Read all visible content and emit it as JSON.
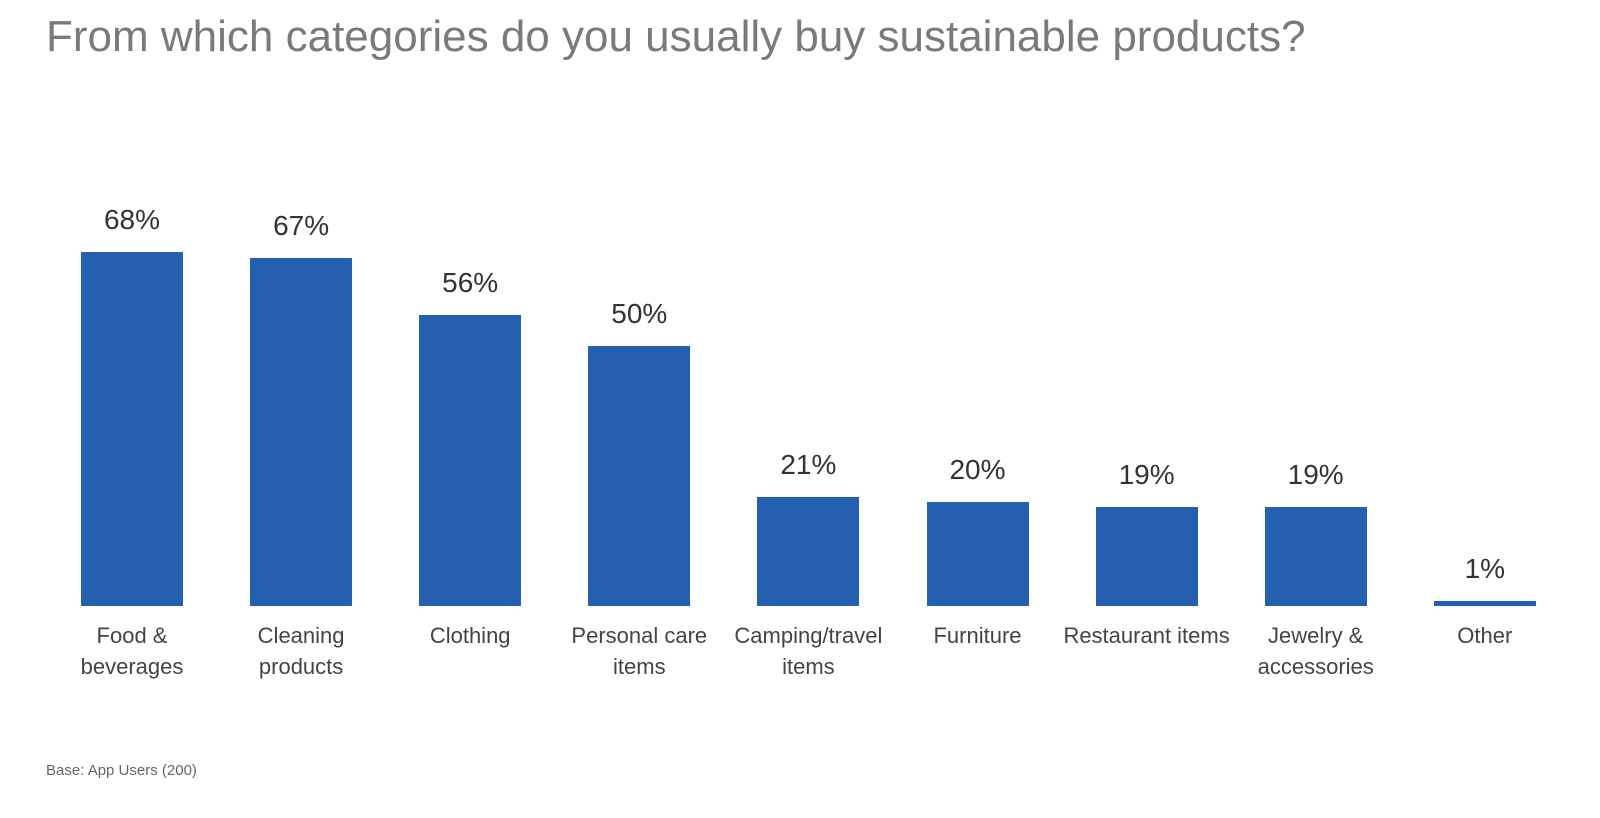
{
  "chart_data": {
    "type": "bar",
    "title": "From which categories do you usually buy sustainable products?",
    "note": "Base: App Users (200)",
    "categories": [
      "Food & beverages",
      "Cleaning products",
      "Clothing",
      "Personal care items",
      "Camping/travel items",
      "Furniture",
      "Restaurant items",
      "Jewelry & accessories",
      "Other"
    ],
    "values": [
      68,
      67,
      56,
      50,
      21,
      20,
      19,
      19,
      1
    ],
    "value_labels": [
      "68%",
      "67%",
      "56%",
      "50%",
      "21%",
      "20%",
      "19%",
      "19%",
      "1%"
    ],
    "color": "#245fb0"
  }
}
